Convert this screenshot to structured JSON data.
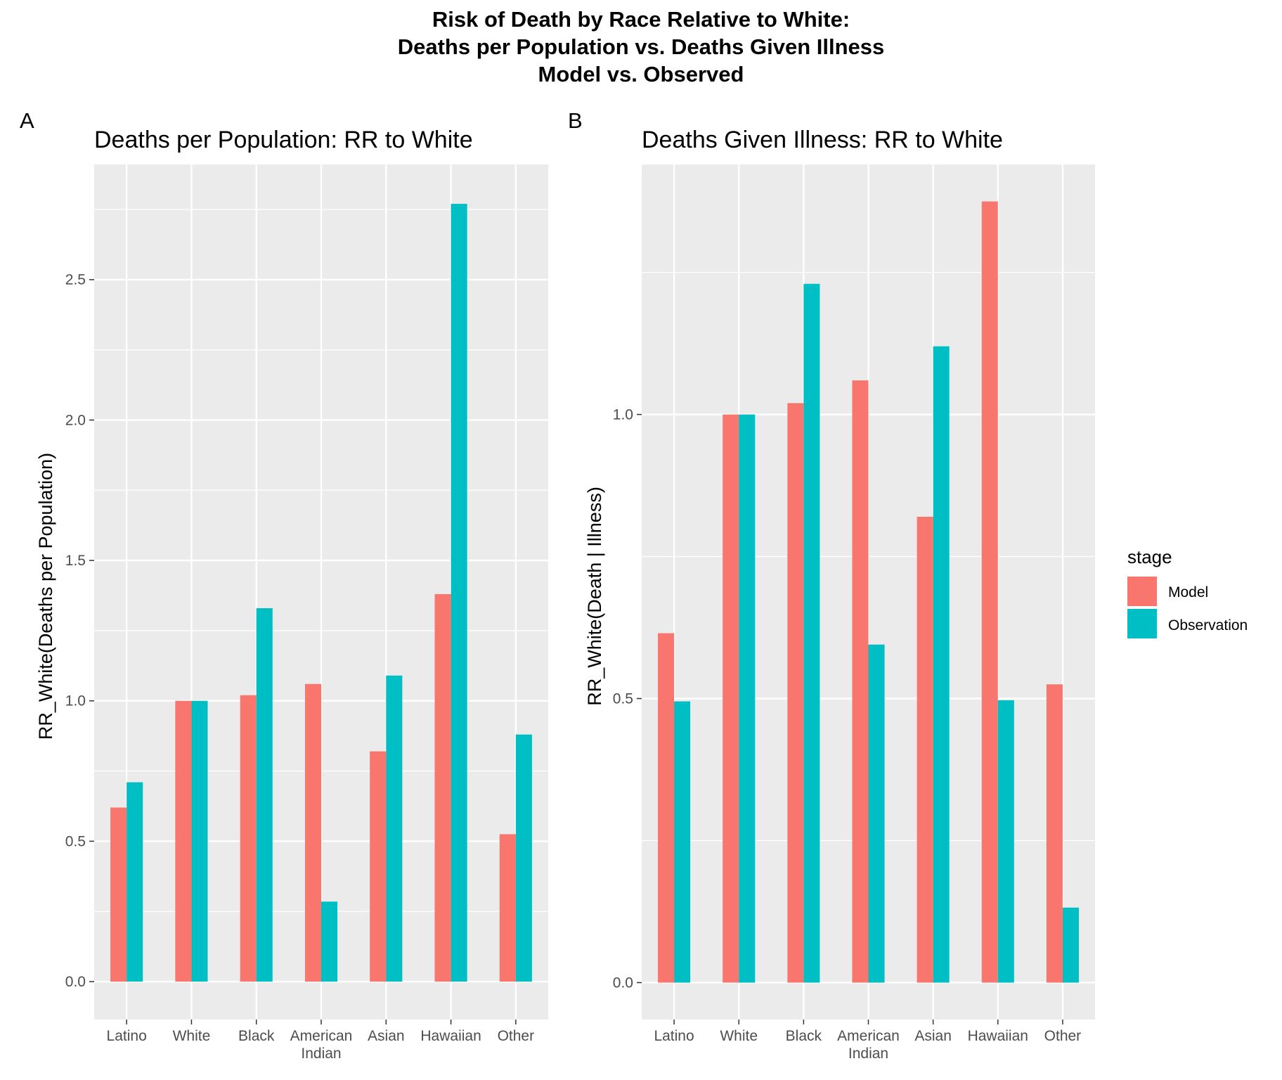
{
  "title_lines": [
    "Risk of Death by Race Relative to White:",
    "Deaths per Population vs. Deaths Given Illness",
    "Model vs. Observed"
  ],
  "legend": {
    "title": "stage",
    "entries": [
      {
        "name": "Model",
        "color": "#F8766D"
      },
      {
        "name": "Observation",
        "color": "#00BFC4"
      }
    ]
  },
  "colors": {
    "panel_bg": "#EBEBEB",
    "grid": "#FFFFFF",
    "tick_text": "#4D4D4D",
    "model": "#F8766D",
    "observation": "#00BFC4"
  },
  "chart_data": [
    {
      "panel_tag": "A",
      "type": "bar",
      "title": "Deaths per Population: RR to White",
      "xlabel": "",
      "ylabel": "RR_White(Deaths per Population)",
      "categories": [
        "Latino",
        "White",
        "Black",
        "American\nIndian",
        "Asian",
        "Hawaiian",
        "Other"
      ],
      "series": [
        {
          "name": "Model",
          "values": [
            0.62,
            1.0,
            1.02,
            1.06,
            0.82,
            1.38,
            0.525
          ]
        },
        {
          "name": "Observation",
          "values": [
            0.71,
            1.0,
            1.33,
            0.285,
            1.09,
            2.77,
            0.88
          ]
        }
      ],
      "ylim": [
        -0.135,
        2.91
      ],
      "yticks": [
        0.0,
        0.5,
        1.0,
        1.5,
        2.0,
        2.5
      ],
      "ytick_labels": [
        "0.0",
        "0.5",
        "1.0",
        "1.5",
        "2.0",
        "2.5"
      ],
      "grid": true
    },
    {
      "panel_tag": "B",
      "type": "bar",
      "title": "Deaths Given Illness: RR to White",
      "xlabel": "",
      "ylabel": "RR_White(Death | Illness)",
      "categories": [
        "Latino",
        "White",
        "Black",
        "American\nIndian",
        "Asian",
        "Hawaiian",
        "Other"
      ],
      "series": [
        {
          "name": "Model",
          "values": [
            0.615,
            1.0,
            1.02,
            1.06,
            0.82,
            1.375,
            0.525
          ]
        },
        {
          "name": "Observation",
          "values": [
            0.495,
            1.0,
            1.23,
            0.595,
            1.12,
            0.497,
            0.132
          ]
        }
      ],
      "ylim": [
        -0.065,
        1.44
      ],
      "yticks": [
        0.0,
        0.5,
        1.0
      ],
      "ytick_labels": [
        "0.0",
        "0.5",
        "1.0"
      ],
      "grid": true
    }
  ]
}
